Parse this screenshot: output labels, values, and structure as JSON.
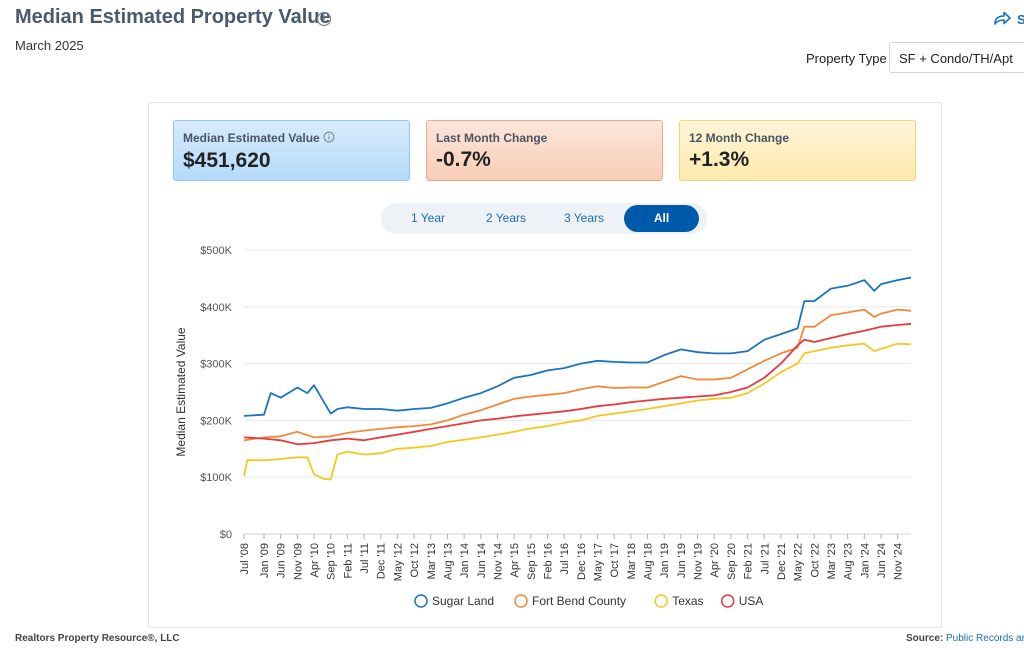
{
  "header": {
    "title": "Median Estimated Property Value",
    "subtitle": "March 2025",
    "share_label": "S"
  },
  "filter": {
    "property_type_label": "Property Type",
    "property_type_value": "SF + Condo/TH/Apt"
  },
  "cards": [
    {
      "label": "Median Estimated Value",
      "value": "$451,620",
      "has_info": true
    },
    {
      "label": "Last Month Change",
      "value": "-0.7%"
    },
    {
      "label": "12 Month Change",
      "value": "+1.3%"
    }
  ],
  "range_tabs": [
    {
      "label": "1 Year",
      "active": false
    },
    {
      "label": "2 Years",
      "active": false
    },
    {
      "label": "3 Years",
      "active": false
    },
    {
      "label": "All",
      "active": true
    }
  ],
  "footer": {
    "left": "Realtors Property Resource®, LLC",
    "source_label": "Source:",
    "source_value": "Public Records ar"
  },
  "chart_data": {
    "type": "line",
    "ylabel": "Median Estimated Value",
    "ylim": [
      0,
      500000
    ],
    "y_ticks": [
      {
        "value": 0,
        "label": "$0"
      },
      {
        "value": 100000,
        "label": "$100K"
      },
      {
        "value": 200000,
        "label": "$200K"
      },
      {
        "value": 300000,
        "label": "$300K"
      },
      {
        "value": 400000,
        "label": "$400K"
      },
      {
        "value": 500000,
        "label": "$500K"
      }
    ],
    "x_labels": [
      "Jul '08",
      "Jan '09",
      "Jun '09",
      "Nov '09",
      "Apr '10",
      "Sep '10",
      "Feb '11",
      "Jul '11",
      "Dec '11",
      "May '12",
      "Oct '12",
      "Mar '13",
      "Aug '13",
      "Jan '14",
      "Jun '14",
      "Nov '14",
      "Apr '15",
      "Sep '15",
      "Feb '16",
      "Jul '16",
      "Dec '16",
      "May '17",
      "Oct '17",
      "Mar '18",
      "Aug '18",
      "Jan '19",
      "Jun '19",
      "Nov '19",
      "Apr '20",
      "Sep '20",
      "Feb '21",
      "Jul '21",
      "Dec '21",
      "May '22",
      "Oct '22",
      "Mar '23",
      "Aug '23",
      "Jan '24",
      "Jun '24",
      "Nov '24"
    ],
    "x_range": [
      "Jul '08",
      "Mar '25"
    ],
    "grid": true,
    "legend_position": "bottom",
    "series": [
      {
        "name": "Sugar Land",
        "color": "#1b75bc",
        "points": [
          [
            "Jul '08",
            208000
          ],
          [
            "Jan '09",
            210000
          ],
          [
            "Mar '09",
            248000
          ],
          [
            "Jun '09",
            240000
          ],
          [
            "Nov '09",
            258000
          ],
          [
            "Feb '10",
            248000
          ],
          [
            "Apr '10",
            262000
          ],
          [
            "Sep '10",
            212000
          ],
          [
            "Nov '10",
            220000
          ],
          [
            "Feb '11",
            223000
          ],
          [
            "Jul '11",
            220000
          ],
          [
            "Dec '11",
            220000
          ],
          [
            "May '12",
            217000
          ],
          [
            "Oct '12",
            220000
          ],
          [
            "Mar '13",
            222000
          ],
          [
            "Aug '13",
            230000
          ],
          [
            "Jan '14",
            240000
          ],
          [
            "Jun '14",
            248000
          ],
          [
            "Nov '14",
            260000
          ],
          [
            "Apr '15",
            275000
          ],
          [
            "Sep '15",
            280000
          ],
          [
            "Feb '16",
            288000
          ],
          [
            "Jul '16",
            292000
          ],
          [
            "Dec '16",
            300000
          ],
          [
            "May '17",
            305000
          ],
          [
            "Oct '17",
            303000
          ],
          [
            "Mar '18",
            302000
          ],
          [
            "Aug '18",
            302000
          ],
          [
            "Jan '19",
            315000
          ],
          [
            "Jun '19",
            325000
          ],
          [
            "Nov '19",
            320000
          ],
          [
            "Apr '20",
            318000
          ],
          [
            "Sep '20",
            318000
          ],
          [
            "Feb '21",
            322000
          ],
          [
            "Jul '21",
            342000
          ],
          [
            "Dec '21",
            352000
          ],
          [
            "May '22",
            362000
          ],
          [
            "Jul '22",
            410000
          ],
          [
            "Oct '22",
            410000
          ],
          [
            "Mar '23",
            432000
          ],
          [
            "Aug '23",
            437000
          ],
          [
            "Jan '24",
            447000
          ],
          [
            "Apr '24",
            428000
          ],
          [
            "Jun '24",
            440000
          ],
          [
            "Nov '24",
            447000
          ],
          [
            "Mar '25",
            451620
          ]
        ]
      },
      {
        "name": "Fort Bend County",
        "color": "#f0893a",
        "points": [
          [
            "Jul '08",
            165000
          ],
          [
            "Jan '09",
            170000
          ],
          [
            "Jun '09",
            172000
          ],
          [
            "Nov '09",
            180000
          ],
          [
            "Apr '10",
            170000
          ],
          [
            "Sep '10",
            172000
          ],
          [
            "Feb '11",
            178000
          ],
          [
            "Jul '11",
            182000
          ],
          [
            "Dec '11",
            185000
          ],
          [
            "May '12",
            188000
          ],
          [
            "Oct '12",
            190000
          ],
          [
            "Mar '13",
            193000
          ],
          [
            "Aug '13",
            200000
          ],
          [
            "Jan '14",
            210000
          ],
          [
            "Jun '14",
            218000
          ],
          [
            "Nov '14",
            228000
          ],
          [
            "Apr '15",
            238000
          ],
          [
            "Sep '15",
            242000
          ],
          [
            "Feb '16",
            245000
          ],
          [
            "Jul '16",
            248000
          ],
          [
            "Dec '16",
            255000
          ],
          [
            "May '17",
            260000
          ],
          [
            "Oct '17",
            257000
          ],
          [
            "Mar '18",
            258000
          ],
          [
            "Aug '18",
            258000
          ],
          [
            "Jan '19",
            268000
          ],
          [
            "Jun '19",
            278000
          ],
          [
            "Nov '19",
            272000
          ],
          [
            "Apr '20",
            272000
          ],
          [
            "Sep '20",
            275000
          ],
          [
            "Feb '21",
            290000
          ],
          [
            "Jul '21",
            305000
          ],
          [
            "Dec '21",
            318000
          ],
          [
            "May '22",
            328000
          ],
          [
            "Jul '22",
            365000
          ],
          [
            "Oct '22",
            365000
          ],
          [
            "Mar '23",
            385000
          ],
          [
            "Aug '23",
            390000
          ],
          [
            "Jan '24",
            395000
          ],
          [
            "Apr '24",
            382000
          ],
          [
            "Jun '24",
            388000
          ],
          [
            "Nov '24",
            395000
          ],
          [
            "Mar '25",
            393000
          ]
        ]
      },
      {
        "name": "Texas",
        "color": "#f5c81e",
        "points": [
          [
            "Jul '08",
            102000
          ],
          [
            "Aug '08",
            130000
          ],
          [
            "Jan '09",
            130000
          ],
          [
            "Jun '09",
            132000
          ],
          [
            "Nov '09",
            135000
          ],
          [
            "Feb '10",
            135000
          ],
          [
            "Apr '10",
            105000
          ],
          [
            "Jul '10",
            97000
          ],
          [
            "Sep '10",
            96000
          ],
          [
            "Nov '10",
            140000
          ],
          [
            "Feb '11",
            145000
          ],
          [
            "Jul '11",
            140000
          ],
          [
            "Dec '11",
            142000
          ],
          [
            "May '12",
            150000
          ],
          [
            "Oct '12",
            152000
          ],
          [
            "Mar '13",
            155000
          ],
          [
            "Aug '13",
            162000
          ],
          [
            "Jan '14",
            166000
          ],
          [
            "Jun '14",
            170000
          ],
          [
            "Nov '14",
            175000
          ],
          [
            "Apr '15",
            180000
          ],
          [
            "Sep '15",
            186000
          ],
          [
            "Feb '16",
            190000
          ],
          [
            "Jul '16",
            196000
          ],
          [
            "Dec '16",
            200000
          ],
          [
            "May '17",
            208000
          ],
          [
            "Oct '17",
            212000
          ],
          [
            "Mar '18",
            216000
          ],
          [
            "Aug '18",
            220000
          ],
          [
            "Jan '19",
            225000
          ],
          [
            "Jun '19",
            230000
          ],
          [
            "Nov '19",
            235000
          ],
          [
            "Apr '20",
            238000
          ],
          [
            "Sep '20",
            240000
          ],
          [
            "Feb '21",
            248000
          ],
          [
            "Jul '21",
            265000
          ],
          [
            "Dec '21",
            285000
          ],
          [
            "May '22",
            300000
          ],
          [
            "Jul '22",
            318000
          ],
          [
            "Oct '22",
            322000
          ],
          [
            "Mar '23",
            328000
          ],
          [
            "Aug '23",
            332000
          ],
          [
            "Jan '24",
            335000
          ],
          [
            "Apr '24",
            322000
          ],
          [
            "Jun '24",
            326000
          ],
          [
            "Nov '24",
            335000
          ],
          [
            "Mar '25",
            334000
          ]
        ]
      },
      {
        "name": "USA",
        "color": "#e8393f",
        "points": [
          [
            "Jul '08",
            170000
          ],
          [
            "Jan '09",
            168000
          ],
          [
            "Jun '09",
            165000
          ],
          [
            "Nov '09",
            158000
          ],
          [
            "Apr '10",
            160000
          ],
          [
            "Sep '10",
            165000
          ],
          [
            "Feb '11",
            168000
          ],
          [
            "Jul '11",
            165000
          ],
          [
            "Dec '11",
            170000
          ],
          [
            "May '12",
            175000
          ],
          [
            "Oct '12",
            180000
          ],
          [
            "Mar '13",
            185000
          ],
          [
            "Aug '13",
            190000
          ],
          [
            "Jan '14",
            195000
          ],
          [
            "Jun '14",
            200000
          ],
          [
            "Nov '14",
            203000
          ],
          [
            "Apr '15",
            207000
          ],
          [
            "Sep '15",
            210000
          ],
          [
            "Feb '16",
            213000
          ],
          [
            "Jul '16",
            216000
          ],
          [
            "Dec '16",
            220000
          ],
          [
            "May '17",
            225000
          ],
          [
            "Oct '17",
            228000
          ],
          [
            "Mar '18",
            232000
          ],
          [
            "Aug '18",
            235000
          ],
          [
            "Jan '19",
            238000
          ],
          [
            "Jun '19",
            240000
          ],
          [
            "Nov '19",
            242000
          ],
          [
            "Apr '20",
            244000
          ],
          [
            "Sep '20",
            250000
          ],
          [
            "Feb '21",
            258000
          ],
          [
            "Jul '21",
            275000
          ],
          [
            "Dec '21",
            300000
          ],
          [
            "May '22",
            332000
          ],
          [
            "Jul '22",
            342000
          ],
          [
            "Oct '22",
            338000
          ],
          [
            "Mar '23",
            345000
          ],
          [
            "Aug '23",
            352000
          ],
          [
            "Jan '24",
            358000
          ],
          [
            "Jun '24",
            365000
          ],
          [
            "Nov '24",
            368000
          ],
          [
            "Mar '25",
            370000
          ]
        ]
      }
    ]
  }
}
